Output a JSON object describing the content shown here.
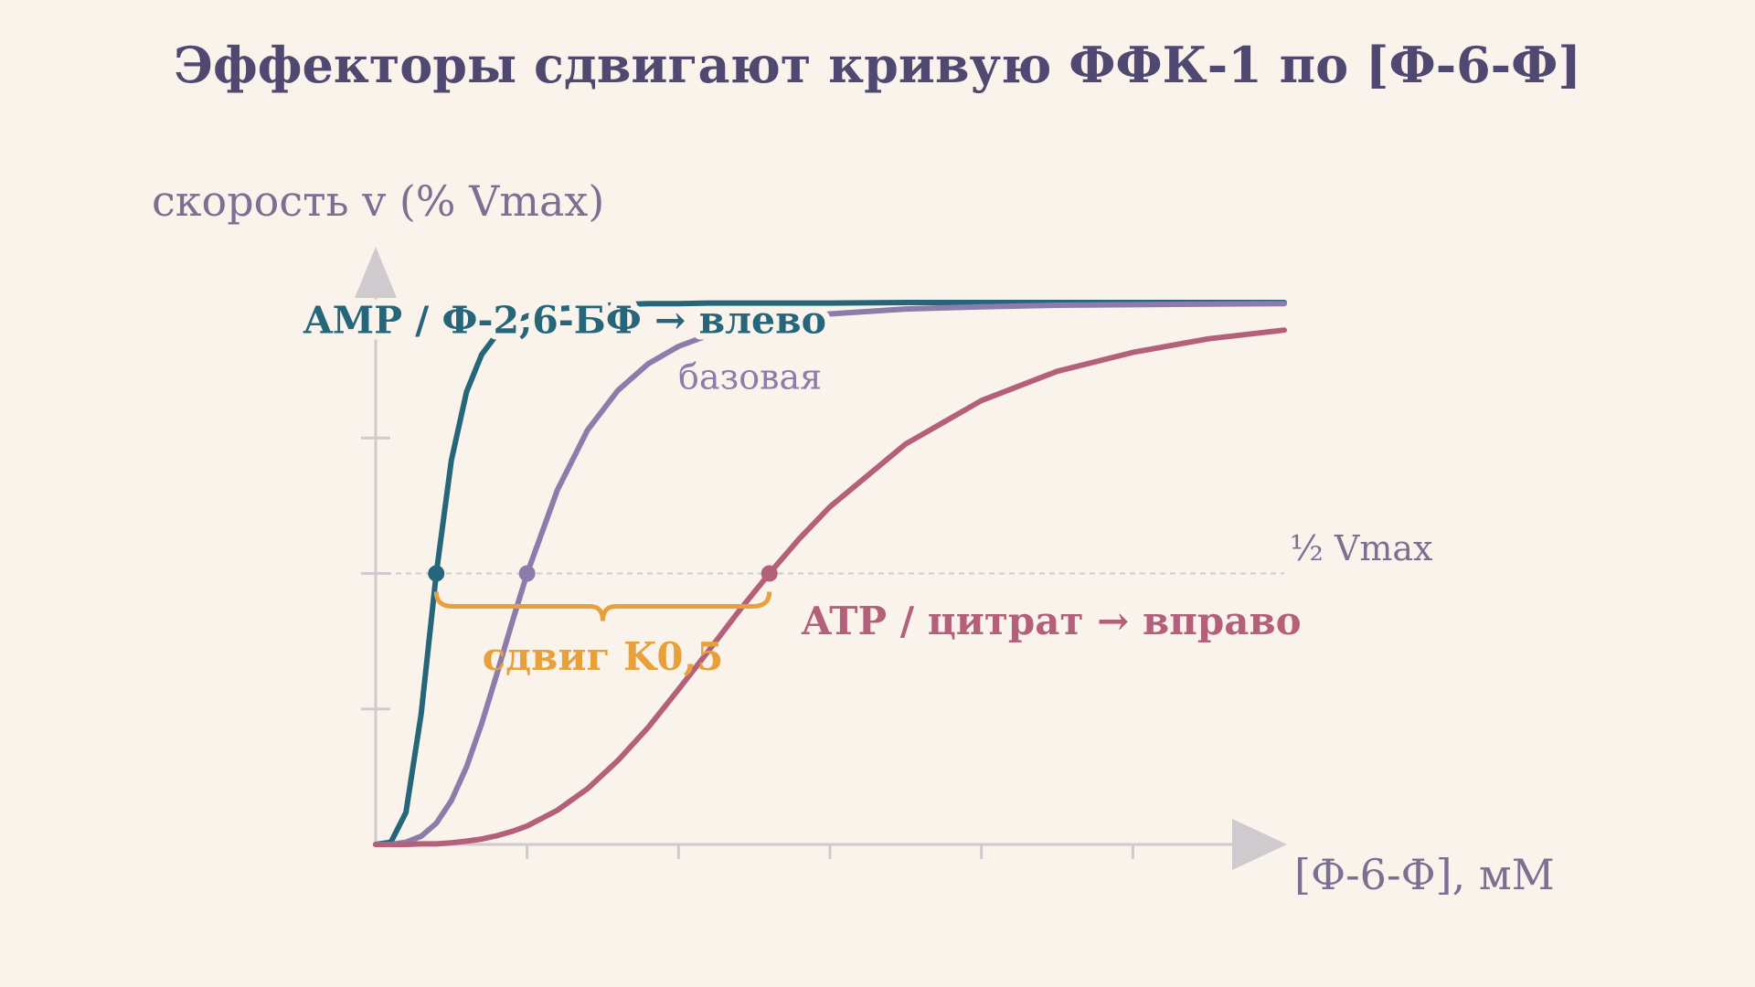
{
  "chart_data": {
    "type": "line",
    "title": "Эффекторы сдвигают кривую ФФК-1 по [Ф-6-Ф]",
    "y_label": "скорость v (% Vmax)",
    "x_label": "[Ф-6-Ф], мМ",
    "x": [
      0,
      0.1,
      0.2,
      0.3,
      0.4,
      0.5,
      0.6,
      0.7,
      0.8,
      0.9,
      1.0,
      1.2,
      1.4,
      1.6,
      1.8,
      2.0,
      2.2,
      2.4,
      2.6,
      2.8,
      3.0,
      3.5,
      4.0,
      4.5,
      5.0,
      5.5,
      6.0
    ],
    "series": [
      {
        "name": "AMP / Ф-2,6-БФ → влево",
        "color": "#26667a",
        "values": [
          0,
          0.4,
          5.9,
          24.0,
          50,
          70.9,
          83.5,
          90.4,
          94.1,
          96.2,
          97.5,
          98.8,
          99.3,
          99.6,
          99.8,
          99.8,
          99.9,
          99.9,
          99.9,
          99.9,
          99.9,
          100,
          100,
          100,
          100,
          100,
          100
        ]
      },
      {
        "name": "базовая",
        "color": "#8e7aab",
        "values": [
          0,
          0.0,
          0.4,
          1.5,
          3.9,
          8.1,
          14.3,
          22.3,
          31.4,
          40.9,
          50,
          65.4,
          76.5,
          83.8,
          88.7,
          91.9,
          94.0,
          95.5,
          96.6,
          97.3,
          97.9,
          98.8,
          99.2,
          99.5,
          99.6,
          99.7,
          99.8
        ]
      },
      {
        "name": "ATP / цитрат → вправо",
        "color": "#b4607a",
        "values": [
          0,
          0.0,
          0.0,
          0.1,
          0.1,
          0.3,
          0.6,
          1.0,
          1.6,
          2.4,
          3.4,
          6.3,
          10.3,
          15.5,
          21.6,
          28.6,
          35.8,
          43.1,
          50,
          56.5,
          62.3,
          73.9,
          81.9,
          87.3,
          90.8,
          93.3,
          94.9
        ]
      }
    ],
    "half_points": [
      {
        "series": 0,
        "index": 4
      },
      {
        "series": 1,
        "index": 10
      },
      {
        "series": 2,
        "index": 18
      }
    ],
    "hline": {
      "value": 50,
      "label": "½ Vmax"
    },
    "annotation": "сдвиг K0,5",
    "annotation_color": "#e8a03a",
    "xlim": [
      0,
      6
    ],
    "xticks": [
      1,
      2,
      3,
      4,
      5
    ],
    "ylim": [
      0,
      100
    ],
    "yticks": [
      25,
      50,
      75
    ]
  }
}
